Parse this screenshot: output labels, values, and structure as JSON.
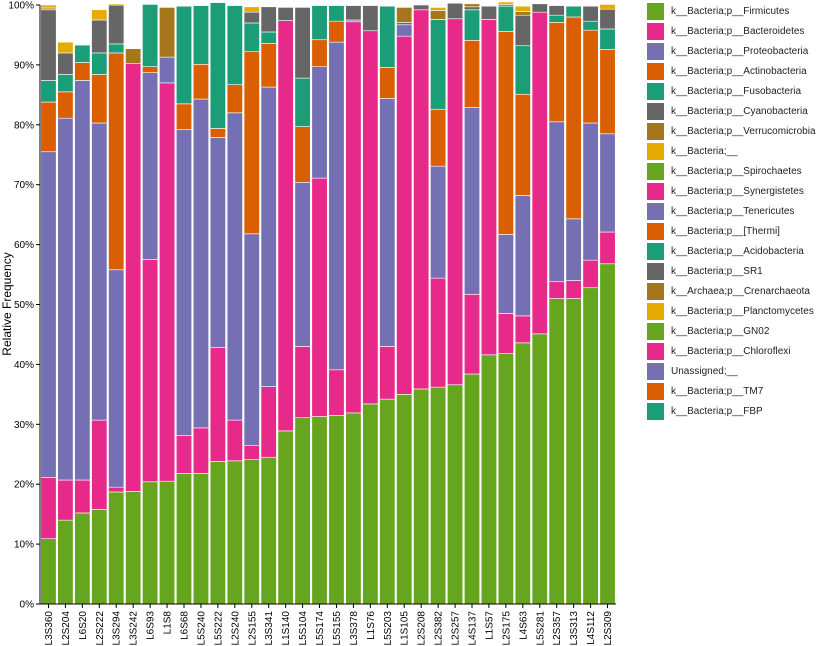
{
  "chart_data": {
    "type": "stacked-bar",
    "title": "",
    "ylabel": "Relative Frequency",
    "xlabel": "",
    "ylim": [
      0,
      100
    ],
    "yticks": [
      "0%",
      "10%",
      "20%",
      "30%",
      "40%",
      "50%",
      "60%",
      "70%",
      "80%",
      "90%",
      "100%"
    ],
    "categories": [
      "L3S360",
      "L2S204",
      "L6S20",
      "L2S222",
      "L3S294",
      "L3S242",
      "L6S93",
      "L1S8",
      "L6S68",
      "L5S240",
      "L5S222",
      "L2S240",
      "L2S155",
      "L3S341",
      "L1S140",
      "L5S104",
      "L5S174",
      "L5S155",
      "L3S378",
      "L1S76",
      "L5S203",
      "L1S105",
      "L2S208",
      "L2S382",
      "L2S257",
      "L4S137",
      "L1S57",
      "L2S175",
      "L4S63",
      "L5S281",
      "L2S357",
      "L3S313",
      "L4S112",
      "L2S309"
    ],
    "series": [
      {
        "name": "k__Bacteria;p__Firmicutes",
        "color": "#66a61e",
        "values": [
          10.9,
          14,
          15.2,
          15.8,
          18.7,
          18.8,
          20.4,
          20.5,
          21.8,
          21.8,
          23.8,
          23.9,
          24.1,
          24.5,
          28.9,
          31.1,
          31.3,
          31.5,
          31.9,
          33.4,
          34.2,
          35,
          35.9,
          36.2,
          36.6,
          38.4,
          41.6,
          41.8,
          43.6,
          45.1,
          51,
          51,
          52.8,
          56.8
        ]
      },
      {
        "name": "k__Bacteria;p__Bacteroidetes",
        "color": "#e7298a",
        "values": [
          10.2,
          6.7,
          5.5,
          14.9,
          0.8,
          71.4,
          37.1,
          66.5,
          6.3,
          7.6,
          19,
          6.8,
          2.4,
          11.8,
          68.5,
          11.9,
          39.8,
          7.6,
          65.3,
          62.3,
          8.8,
          59.8,
          63.3,
          18.2,
          61.1,
          13.3,
          56,
          6.7,
          4.5,
          53.7,
          2.8,
          3,
          4.6,
          5.3
        ]
      },
      {
        "name": "k__Bacteria;p__Proteobacteria",
        "color": "#7570b3",
        "values": [
          54.4,
          60.4,
          66.7,
          49.6,
          36.3,
          0,
          31.2,
          4.3,
          51.1,
          54.9,
          35.1,
          51.3,
          35.3,
          50,
          0,
          27.4,
          18.6,
          54.7,
          0.3,
          0,
          41.4,
          1.9,
          0,
          18.7,
          0,
          31.2,
          0,
          13.2,
          20.1,
          0,
          26.7,
          10.3,
          22.9,
          16.4
        ]
      },
      {
        "name": "k__Bacteria;p__Actinobacteria",
        "color": "#d95f02",
        "values": [
          8.3,
          4.4,
          3,
          8.1,
          36.2,
          0,
          1,
          0,
          4.3,
          5.8,
          1.5,
          4.7,
          30.4,
          7.3,
          0,
          9.3,
          4.5,
          3.5,
          0,
          0,
          5.2,
          0,
          0,
          9.5,
          0,
          11.2,
          0,
          33.9,
          16.9,
          0,
          16.6,
          33.7,
          15.5,
          14.1
        ]
      },
      {
        "name": "k__Bacteria;p__Fusobacteria",
        "color": "#1b9e77",
        "values": [
          3.6,
          2.9,
          2.9,
          3.6,
          1.5,
          0,
          10.4,
          0,
          16.3,
          9.8,
          21,
          13.2,
          4.8,
          1.9,
          0,
          8.1,
          5.7,
          2.6,
          0,
          0,
          10.2,
          0,
          0,
          15,
          0,
          5.1,
          0,
          4.2,
          8.1,
          0,
          1.2,
          1.8,
          1.5,
          3.4
        ]
      },
      {
        "name": "k__Bacteria;p__Cyanobacteria",
        "color": "#666666",
        "values": [
          11.8,
          3.6,
          0,
          5.5,
          6.5,
          0,
          0,
          0,
          0,
          0,
          0,
          0,
          1.8,
          4.2,
          2.2,
          11.8,
          0,
          0,
          2.4,
          4.2,
          0,
          0.4,
          0.8,
          0,
          2.6,
          0.5,
          2.2,
          0,
          5.1,
          1.4,
          1.6,
          0,
          2.5,
          3.3
        ]
      },
      {
        "name": "k__Bacteria;p__Verrucomicrobia",
        "color": "#a6761d",
        "values": [
          0.3,
          0,
          0,
          0,
          0,
          2.5,
          0,
          8.3,
          0,
          0,
          0,
          0,
          0,
          0,
          0,
          0,
          0,
          0,
          0,
          0,
          0,
          2.5,
          0,
          1.5,
          0,
          0.5,
          0,
          0.3,
          0.6,
          0,
          0,
          0,
          0,
          0
        ]
      },
      {
        "name": "k__Bacteria;__",
        "color": "#e6ab02",
        "values": [
          0.5,
          1.8,
          0,
          1.7,
          0.2,
          0,
          0,
          0,
          0,
          0,
          0,
          0,
          0.9,
          0,
          0,
          0,
          0,
          0,
          0,
          0,
          0,
          0,
          0,
          0.5,
          0,
          0,
          0,
          0.4,
          0.9,
          0,
          0,
          0,
          0,
          0.8
        ]
      }
    ]
  },
  "legend": [
    {
      "label": "k__Bacteria;p__Firmicutes",
      "color": "#66a61e"
    },
    {
      "label": "k__Bacteria;p__Bacteroidetes",
      "color": "#e7298a"
    },
    {
      "label": "k__Bacteria;p__Proteobacteria",
      "color": "#7570b3"
    },
    {
      "label": "k__Bacteria;p__Actinobacteria",
      "color": "#d95f02"
    },
    {
      "label": "k__Bacteria;p__Fusobacteria",
      "color": "#1b9e77"
    },
    {
      "label": "k__Bacteria;p__Cyanobacteria",
      "color": "#666666"
    },
    {
      "label": "k__Bacteria;p__Verrucomicrobia",
      "color": "#a6761d"
    },
    {
      "label": "k__Bacteria;__",
      "color": "#e6ab02"
    },
    {
      "label": "k__Bacteria;p__Spirochaetes",
      "color": "#66a61e"
    },
    {
      "label": "k__Bacteria;p__Synergistetes",
      "color": "#e7298a"
    },
    {
      "label": "k__Bacteria;p__Tenericutes",
      "color": "#7570b3"
    },
    {
      "label": "k__Bacteria;p__[Thermi]",
      "color": "#d95f02"
    },
    {
      "label": "k__Bacteria;p__Acidobacteria",
      "color": "#1b9e77"
    },
    {
      "label": "k__Bacteria;p__SR1",
      "color": "#666666"
    },
    {
      "label": "k__Archaea;p__Crenarchaeota",
      "color": "#a6761d"
    },
    {
      "label": "k__Bacteria;p__Planctomycetes",
      "color": "#e6ab02"
    },
    {
      "label": "k__Bacteria;p__GN02",
      "color": "#66a61e"
    },
    {
      "label": "k__Bacteria;p__Chloroflexi",
      "color": "#e7298a"
    },
    {
      "label": "Unassigned;__",
      "color": "#7570b3"
    },
    {
      "label": "k__Bacteria;p__TM7",
      "color": "#d95f02"
    },
    {
      "label": "k__Bacteria;p__FBP",
      "color": "#1b9e77"
    }
  ]
}
